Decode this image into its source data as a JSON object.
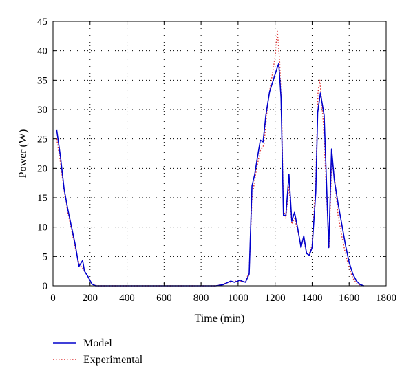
{
  "chart_data": {
    "type": "line",
    "title": "",
    "xlabel": "Time (min)",
    "ylabel": "Power (W)",
    "xlim": [
      0,
      1800
    ],
    "ylim": [
      0,
      45
    ],
    "xticks": [
      0,
      200,
      400,
      600,
      800,
      1000,
      1200,
      1400,
      1600,
      1800
    ],
    "yticks": [
      0,
      5,
      10,
      15,
      20,
      25,
      30,
      35,
      40,
      45
    ],
    "grid": true,
    "legend_position": "below-left",
    "series": [
      {
        "name": "Model",
        "color": "#0000cc",
        "style": "solid",
        "points": [
          [
            20,
            26.5
          ],
          [
            40,
            22
          ],
          [
            60,
            16.5
          ],
          [
            80,
            13
          ],
          [
            100,
            10
          ],
          [
            120,
            7
          ],
          [
            140,
            3.3
          ],
          [
            160,
            4.3
          ],
          [
            170,
            2.5
          ],
          [
            190,
            1.5
          ],
          [
            210,
            0.3
          ],
          [
            230,
            0
          ],
          [
            400,
            0
          ],
          [
            600,
            0
          ],
          [
            800,
            0
          ],
          [
            880,
            0
          ],
          [
            920,
            0.2
          ],
          [
            940,
            0.5
          ],
          [
            960,
            0.8
          ],
          [
            980,
            0.6
          ],
          [
            1000,
            0.8
          ],
          [
            1010,
            1
          ],
          [
            1020,
            0.8
          ],
          [
            1040,
            0.6
          ],
          [
            1060,
            2
          ],
          [
            1075,
            17
          ],
          [
            1090,
            19
          ],
          [
            1100,
            21
          ],
          [
            1120,
            24.8
          ],
          [
            1135,
            24.5
          ],
          [
            1150,
            29
          ],
          [
            1170,
            33
          ],
          [
            1190,
            35
          ],
          [
            1210,
            37
          ],
          [
            1220,
            37.8
          ],
          [
            1232,
            32
          ],
          [
            1245,
            12
          ],
          [
            1258,
            12
          ],
          [
            1275,
            19
          ],
          [
            1290,
            11
          ],
          [
            1305,
            12.5
          ],
          [
            1322,
            9.8
          ],
          [
            1340,
            6.5
          ],
          [
            1355,
            8.5
          ],
          [
            1370,
            5.5
          ],
          [
            1385,
            5.2
          ],
          [
            1400,
            6.5
          ],
          [
            1420,
            16
          ],
          [
            1430,
            29.5
          ],
          [
            1445,
            32.8
          ],
          [
            1465,
            29
          ],
          [
            1490,
            6.5
          ],
          [
            1505,
            23.3
          ],
          [
            1520,
            18
          ],
          [
            1540,
            14
          ],
          [
            1560,
            10.5
          ],
          [
            1580,
            7
          ],
          [
            1600,
            4
          ],
          [
            1620,
            2
          ],
          [
            1640,
            0.8
          ],
          [
            1660,
            0.2
          ],
          [
            1680,
            0
          ]
        ]
      },
      {
        "name": "Experimental",
        "color": "#dd3333",
        "style": "dotted",
        "points": [
          [
            20,
            25
          ],
          [
            40,
            21
          ],
          [
            60,
            16
          ],
          [
            80,
            12.5
          ],
          [
            100,
            9.5
          ],
          [
            120,
            6.5
          ],
          [
            140,
            3.8
          ],
          [
            160,
            3
          ],
          [
            180,
            2
          ],
          [
            200,
            1
          ],
          [
            220,
            0.2
          ],
          [
            240,
            0
          ],
          [
            400,
            0
          ],
          [
            600,
            0
          ],
          [
            800,
            0
          ],
          [
            880,
            0
          ],
          [
            920,
            0.3
          ],
          [
            950,
            0.6
          ],
          [
            980,
            0.7
          ],
          [
            1000,
            0.9
          ],
          [
            1020,
            0.7
          ],
          [
            1040,
            0.6
          ],
          [
            1060,
            2.5
          ],
          [
            1075,
            15
          ],
          [
            1100,
            20
          ],
          [
            1120,
            23
          ],
          [
            1140,
            24
          ],
          [
            1160,
            31
          ],
          [
            1180,
            35
          ],
          [
            1200,
            39
          ],
          [
            1212,
            43.5
          ],
          [
            1225,
            38
          ],
          [
            1235,
            30
          ],
          [
            1245,
            13
          ],
          [
            1258,
            11.5
          ],
          [
            1275,
            17
          ],
          [
            1290,
            10.5
          ],
          [
            1305,
            11.5
          ],
          [
            1325,
            9
          ],
          [
            1340,
            7
          ],
          [
            1355,
            8
          ],
          [
            1370,
            5.5
          ],
          [
            1385,
            5.5
          ],
          [
            1400,
            7
          ],
          [
            1420,
            18
          ],
          [
            1432,
            33
          ],
          [
            1442,
            35
          ],
          [
            1460,
            28
          ],
          [
            1480,
            14
          ],
          [
            1492,
            6.5
          ],
          [
            1505,
            21
          ],
          [
            1520,
            19
          ],
          [
            1540,
            12
          ],
          [
            1560,
            8.5
          ],
          [
            1580,
            5.5
          ],
          [
            1600,
            3
          ],
          [
            1620,
            1.3
          ],
          [
            1640,
            0.4
          ],
          [
            1660,
            0.1
          ],
          [
            1680,
            0
          ]
        ]
      }
    ]
  }
}
